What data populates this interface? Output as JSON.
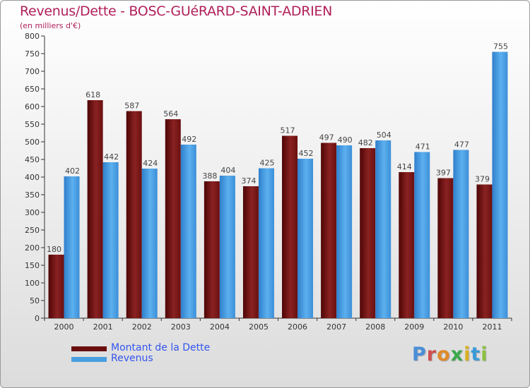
{
  "title": "Revenus/Dette - BOSC-GUéRARD-SAINT-ADRIEN",
  "subtitle": "(en milliers d'€)",
  "logo": {
    "text": "Proxiti",
    "letter_colors": [
      "#4a8ed8",
      "#d05050",
      "#e08a2a",
      "#3aa84a",
      "#d8b020",
      "#3a9ad8",
      "#8ac040"
    ]
  },
  "colors": {
    "dette": "#7a1a1a",
    "revenus": "#4a9ee0",
    "axis": "#333333",
    "grid": "#bbbbbb"
  },
  "legend": [
    {
      "label": "Montant de la Dette",
      "color": "#6a0e0e"
    },
    {
      "label": "Revenus",
      "color": "#4a9ee0"
    }
  ],
  "chart_data": {
    "type": "bar",
    "title": "Revenus/Dette - BOSC-GUéRARD-SAINT-ADRIEN",
    "subtitle": "(en milliers d'€)",
    "xlabel": "",
    "ylabel": "",
    "ylim": [
      0,
      800
    ],
    "ytick_step": 50,
    "grid": false,
    "legend_position": "bottom-left",
    "categories": [
      "2000",
      "2001",
      "2002",
      "2003",
      "2004",
      "2005",
      "2006",
      "2007",
      "2008",
      "2009",
      "2010",
      "2011"
    ],
    "series": [
      {
        "name": "Montant de la Dette",
        "values": [
          180,
          618,
          587,
          564,
          388,
          374,
          517,
          497,
          482,
          414,
          397,
          379
        ]
      },
      {
        "name": "Revenus",
        "values": [
          402,
          442,
          424,
          492,
          404,
          425,
          452,
          490,
          504,
          471,
          477,
          755
        ]
      }
    ]
  }
}
